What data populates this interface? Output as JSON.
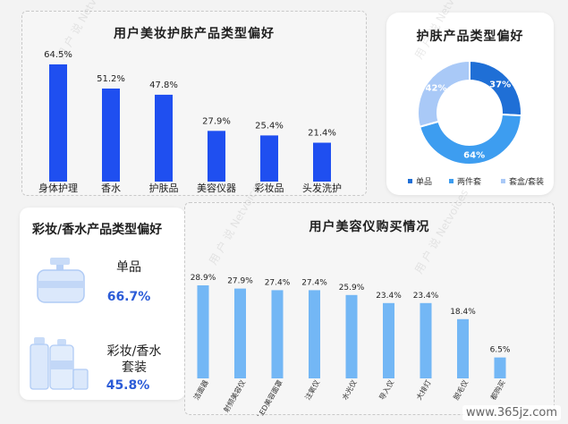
{
  "panels": {
    "top_left": {
      "title": "用户美妆护肤产品类型偏好"
    },
    "top_right": {
      "title": "护肤产品类型偏好"
    },
    "bottom_left": {
      "title": "彩妆/香水产品类型偏好",
      "items": [
        {
          "label": "单品",
          "value": "66.7%"
        },
        {
          "label": "彩妆/香水\n套装",
          "value": "45.8%"
        }
      ]
    },
    "bottom_right": {
      "title": "用户美容仪购买情况"
    }
  },
  "watermark": {
    "line1": "用 户 说",
    "line2": "Netvoices"
  },
  "footer": {
    "url": "www.365jz.com"
  },
  "colors": {
    "bar_dark": "#1f4ff0",
    "bar_light": "#73b7f5",
    "donut": [
      "#1f6fd6",
      "#3d9df0",
      "#a9c9f7"
    ]
  },
  "chart_data": [
    {
      "type": "bar",
      "title": "用户美妆护肤产品类型偏好",
      "categories": [
        "身体护理",
        "香水",
        "护肤品",
        "美容仪器",
        "彩妆品",
        "头发洗护"
      ],
      "values": [
        64.5,
        51.2,
        47.8,
        27.9,
        25.4,
        21.4
      ],
      "value_labels": [
        "64.5%",
        "51.2%",
        "47.8%",
        "27.9%",
        "25.4%",
        "21.4%"
      ],
      "ylim": [
        0,
        70
      ],
      "grid": false
    },
    {
      "type": "pie",
      "title": "护肤产品类型偏好",
      "categories": [
        "单品",
        "两件套",
        "套盒/套装"
      ],
      "values": [
        37,
        64,
        42
      ],
      "value_labels": [
        "37%",
        "64%",
        "42%"
      ],
      "legend": "bottom"
    },
    {
      "type": "bar",
      "title": "用户美容仪购买情况",
      "categories": [
        "洁面器",
        "射频美容仪",
        "LED美容面罩",
        "注氧仪",
        "水光仪",
        "导入仪",
        "大排灯",
        "脱毛仪",
        "都购买"
      ],
      "values": [
        28.9,
        27.9,
        27.4,
        27.4,
        25.9,
        23.4,
        23.4,
        18.4,
        6.5
      ],
      "value_labels": [
        "28.9%",
        "27.9%",
        "27.4%",
        "27.4%",
        "25.9%",
        "23.4%",
        "23.4%",
        "18.4%",
        "6.5%"
      ],
      "ylim": [
        0,
        32
      ],
      "grid": false
    }
  ]
}
